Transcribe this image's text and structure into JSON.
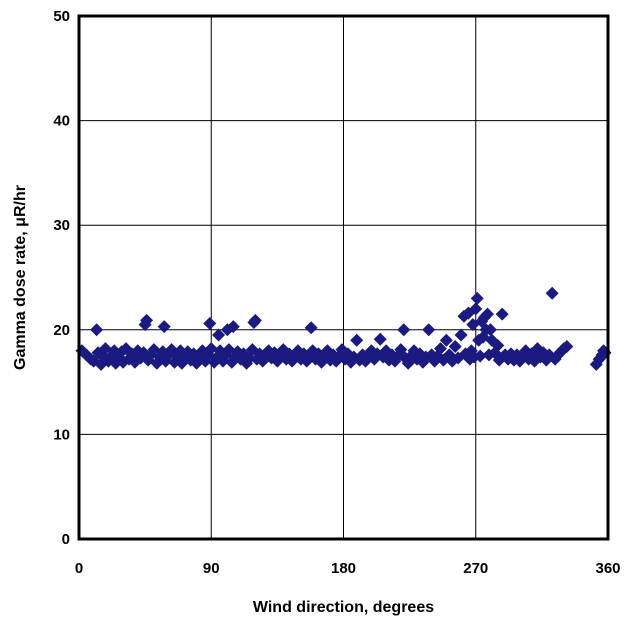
{
  "chart_data": {
    "type": "scatter",
    "xlabel": "Wind direction, degrees",
    "ylabel": "Gamma dose rate, μR/hr",
    "xlim": [
      0,
      360
    ],
    "ylim": [
      0,
      50
    ],
    "xticks": [
      "0",
      "90",
      "180",
      "270",
      "360"
    ],
    "yticks": [
      "0",
      "10",
      "20",
      "30",
      "40",
      "50"
    ],
    "grid": true,
    "marker": "diamond",
    "color": "#1a1a80",
    "series": [
      {
        "points": [
          [
            2,
            18.0
          ],
          [
            5,
            17.6
          ],
          [
            8,
            17.2
          ],
          [
            10,
            17.0
          ],
          [
            12,
            20.0
          ],
          [
            13,
            17.8
          ],
          [
            15,
            16.7
          ],
          [
            17,
            17.3
          ],
          [
            18,
            18.2
          ],
          [
            20,
            17.0
          ],
          [
            22,
            17.5
          ],
          [
            24,
            18.0
          ],
          [
            25,
            16.8
          ],
          [
            27,
            17.4
          ],
          [
            29,
            17.9
          ],
          [
            30,
            16.9
          ],
          [
            32,
            18.2
          ],
          [
            34,
            17.2
          ],
          [
            36,
            17.7
          ],
          [
            38,
            16.9
          ],
          [
            40,
            18.0
          ],
          [
            42,
            17.3
          ],
          [
            44,
            17.8
          ],
          [
            45,
            20.5
          ],
          [
            46,
            20.9
          ],
          [
            47,
            17.1
          ],
          [
            49,
            17.6
          ],
          [
            51,
            18.1
          ],
          [
            53,
            16.8
          ],
          [
            55,
            17.4
          ],
          [
            57,
            17.9
          ],
          [
            58,
            20.3
          ],
          [
            59,
            17.0
          ],
          [
            61,
            17.6
          ],
          [
            63,
            18.1
          ],
          [
            65,
            16.9
          ],
          [
            67,
            17.5
          ],
          [
            69,
            18.0
          ],
          [
            70,
            16.8
          ],
          [
            72,
            17.4
          ],
          [
            74,
            17.9
          ],
          [
            76,
            17.1
          ],
          [
            78,
            17.7
          ],
          [
            80,
            16.8
          ],
          [
            82,
            17.3
          ],
          [
            84,
            18.0
          ],
          [
            86,
            17.0
          ],
          [
            88,
            17.6
          ],
          [
            89,
            20.6
          ],
          [
            90,
            18.2
          ],
          [
            92,
            16.9
          ],
          [
            94,
            17.4
          ],
          [
            95,
            19.5
          ],
          [
            96,
            18.0
          ],
          [
            98,
            17.0
          ],
          [
            100,
            17.6
          ],
          [
            101,
            20.0
          ],
          [
            102,
            18.1
          ],
          [
            104,
            16.9
          ],
          [
            105,
            20.3
          ],
          [
            106,
            17.4
          ],
          [
            108,
            17.9
          ],
          [
            110,
            17.2
          ],
          [
            112,
            17.7
          ],
          [
            114,
            16.8
          ],
          [
            116,
            17.3
          ],
          [
            118,
            18.1
          ],
          [
            119,
            20.7
          ],
          [
            120,
            20.9
          ],
          [
            121,
            17.2
          ],
          [
            123,
            17.7
          ],
          [
            125,
            17.0
          ],
          [
            127,
            17.5
          ],
          [
            129,
            18.0
          ],
          [
            131,
            17.3
          ],
          [
            133,
            17.8
          ],
          [
            135,
            17.0
          ],
          [
            137,
            17.5
          ],
          [
            139,
            18.1
          ],
          [
            141,
            17.2
          ],
          [
            143,
            17.7
          ],
          [
            145,
            17.0
          ],
          [
            147,
            17.5
          ],
          [
            149,
            18.0
          ],
          [
            151,
            17.2
          ],
          [
            153,
            17.7
          ],
          [
            155,
            17.0
          ],
          [
            157,
            17.4
          ],
          [
            158,
            20.2
          ],
          [
            159,
            18.0
          ],
          [
            161,
            17.2
          ],
          [
            163,
            17.7
          ],
          [
            165,
            16.9
          ],
          [
            167,
            17.4
          ],
          [
            169,
            18.0
          ],
          [
            171,
            17.1
          ],
          [
            173,
            17.6
          ],
          [
            175,
            17.0
          ],
          [
            177,
            17.5
          ],
          [
            179,
            18.1
          ],
          [
            181,
            17.2
          ],
          [
            183,
            17.7
          ],
          [
            185,
            16.9
          ],
          [
            187,
            17.4
          ],
          [
            189,
            19.0
          ],
          [
            191,
            17.1
          ],
          [
            193,
            17.6
          ],
          [
            195,
            17.0
          ],
          [
            197,
            17.5
          ],
          [
            199,
            18.0
          ],
          [
            201,
            17.2
          ],
          [
            203,
            17.7
          ],
          [
            205,
            19.1
          ],
          [
            207,
            17.4
          ],
          [
            209,
            18.0
          ],
          [
            211,
            17.1
          ],
          [
            213,
            17.6
          ],
          [
            215,
            17.0
          ],
          [
            217,
            17.5
          ],
          [
            219,
            18.1
          ],
          [
            221,
            20.0
          ],
          [
            222,
            17.3
          ],
          [
            224,
            16.8
          ],
          [
            226,
            17.5
          ],
          [
            228,
            18.0
          ],
          [
            230,
            17.2
          ],
          [
            232,
            17.7
          ],
          [
            234,
            16.9
          ],
          [
            236,
            17.4
          ],
          [
            238,
            20.0
          ],
          [
            240,
            17.6
          ],
          [
            242,
            17.0
          ],
          [
            244,
            17.5
          ],
          [
            246,
            18.2
          ],
          [
            248,
            17.1
          ],
          [
            250,
            19.0
          ],
          [
            252,
            17.6
          ],
          [
            254,
            17.0
          ],
          [
            256,
            18.4
          ],
          [
            258,
            17.3
          ],
          [
            260,
            19.5
          ],
          [
            262,
            21.3
          ],
          [
            263,
            17.7
          ],
          [
            265,
            21.6
          ],
          [
            266,
            17.2
          ],
          [
            267,
            18.0
          ],
          [
            268,
            20.5
          ],
          [
            269,
            17.4
          ],
          [
            270,
            22.0
          ],
          [
            271,
            23.0
          ],
          [
            272,
            19.0
          ],
          [
            273,
            17.5
          ],
          [
            274,
            20.8
          ],
          [
            275,
            19.3
          ],
          [
            276,
            21.2
          ],
          [
            277,
            20.0
          ],
          [
            278,
            21.5
          ],
          [
            279,
            17.6
          ],
          [
            280,
            20.0
          ],
          [
            281,
            19.0
          ],
          [
            283,
            17.8
          ],
          [
            285,
            18.5
          ],
          [
            286,
            17.1
          ],
          [
            288,
            21.5
          ],
          [
            290,
            17.6
          ],
          [
            292,
            17.2
          ],
          [
            294,
            17.7
          ],
          [
            296,
            17.1
          ],
          [
            298,
            17.6
          ],
          [
            300,
            17.0
          ],
          [
            302,
            17.5
          ],
          [
            304,
            18.0
          ],
          [
            306,
            17.2
          ],
          [
            308,
            17.7
          ],
          [
            310,
            17.0
          ],
          [
            312,
            18.2
          ],
          [
            314,
            17.4
          ],
          [
            316,
            17.8
          ],
          [
            318,
            17.1
          ],
          [
            320,
            17.6
          ],
          [
            322,
            23.5
          ],
          [
            324,
            17.2
          ],
          [
            326,
            17.6
          ],
          [
            328,
            17.9
          ],
          [
            330,
            18.2
          ],
          [
            332,
            18.4
          ],
          [
            352,
            16.7
          ],
          [
            354,
            17.2
          ],
          [
            356,
            17.6
          ],
          [
            357,
            18.0
          ],
          [
            358,
            17.8
          ]
        ]
      }
    ]
  }
}
